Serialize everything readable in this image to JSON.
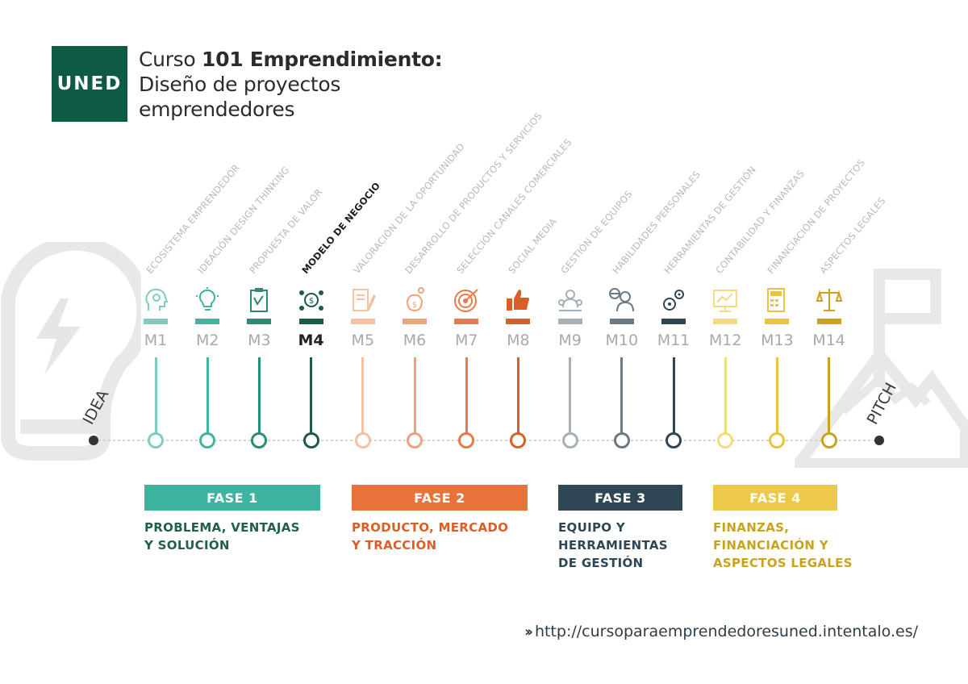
{
  "logo": {
    "text": "UNED"
  },
  "title": {
    "line1_prefix": "Curso ",
    "line1_bold": "101 Emprendimiento:",
    "line2": "Diseño de proyectos",
    "line3": "emprendedores"
  },
  "timeline": {
    "start_label": "IDEA",
    "end_label": "PITCH",
    "active_module": "M4",
    "modules": [
      {
        "id": "M1",
        "topic": "Ecosistema emprendedor",
        "icon": "head-gears-icon",
        "color": "#7ecdbf",
        "phase": 1
      },
      {
        "id": "M2",
        "topic": "Ideación design thinking",
        "icon": "lightbulb-icon",
        "color": "#3fb5a0",
        "phase": 1
      },
      {
        "id": "M3",
        "topic": "Propuesta de valor",
        "icon": "clipboard-icon",
        "color": "#2a8c74",
        "phase": 1
      },
      {
        "id": "M4",
        "topic": "Modelo de negocio",
        "icon": "money-network-icon",
        "color": "#1c5a4a",
        "phase": 1
      },
      {
        "id": "M5",
        "topic": "Valoración de la oportunidad",
        "icon": "document-pen-icon",
        "color": "#f5c0a3",
        "phase": 2
      },
      {
        "id": "M6",
        "topic": "Desarrollo de productos y servicios",
        "icon": "money-bag-icon",
        "color": "#f0a27c",
        "phase": 2
      },
      {
        "id": "M7",
        "topic": "Selección canales comerciales",
        "icon": "target-icon",
        "color": "#e8794a",
        "phase": 2
      },
      {
        "id": "M8",
        "topic": "Social media",
        "icon": "thumbs-up-icon",
        "color": "#d95f27",
        "phase": 2
      },
      {
        "id": "M9",
        "topic": "Gestión de equipos",
        "icon": "team-icon",
        "color": "#a7b0b6",
        "phase": 3
      },
      {
        "id": "M10",
        "topic": "Habilidades personales",
        "icon": "person-globe-icon",
        "color": "#6c7a84",
        "phase": 3
      },
      {
        "id": "M11",
        "topic": "Herramientas de gestión",
        "icon": "gears-icon",
        "color": "#2f4655",
        "phase": 3
      },
      {
        "id": "M12",
        "topic": "Contabilidad y finanzas",
        "icon": "chart-screen-icon",
        "color": "#f2dc7c",
        "phase": 4
      },
      {
        "id": "M13",
        "topic": "Financiación de proyectos",
        "icon": "calculator-icon",
        "color": "#e8c540",
        "phase": 4
      },
      {
        "id": "M14",
        "topic": "Aspectos legales",
        "icon": "scales-icon",
        "color": "#c9a21e",
        "phase": 4
      }
    ]
  },
  "phases": [
    {
      "label": "FASE 1",
      "description": [
        "PROBLEMA, VENTAJAS",
        "Y SOLUCIÓN"
      ],
      "box_color": "#3db3a0",
      "text_color": "#1f5f4c"
    },
    {
      "label": "FASE 2",
      "description": [
        "PRODUCTO, MERCADO",
        "Y TRACCIÓN"
      ],
      "box_color": "#e8733a",
      "text_color": "#d95f27"
    },
    {
      "label": "FASE 3",
      "description": [
        "EQUIPO Y",
        "HERRAMIENTAS",
        "DE GESTIÓN"
      ],
      "box_color": "#2f4655",
      "text_color": "#2f4655"
    },
    {
      "label": "FASE 4",
      "description": [
        "FINANZAS,",
        "FINANCIACIÓN Y",
        "ASPECTOS LEGALES"
      ],
      "box_color": "#ecc94b",
      "text_color": "#c9a21e"
    }
  ],
  "footer": {
    "url": "http://cursoparaemprendedoresuned.intentalo.es/"
  },
  "background_icons": [
    "lightbulb-bolt-icon",
    "mountain-flag-icon"
  ]
}
